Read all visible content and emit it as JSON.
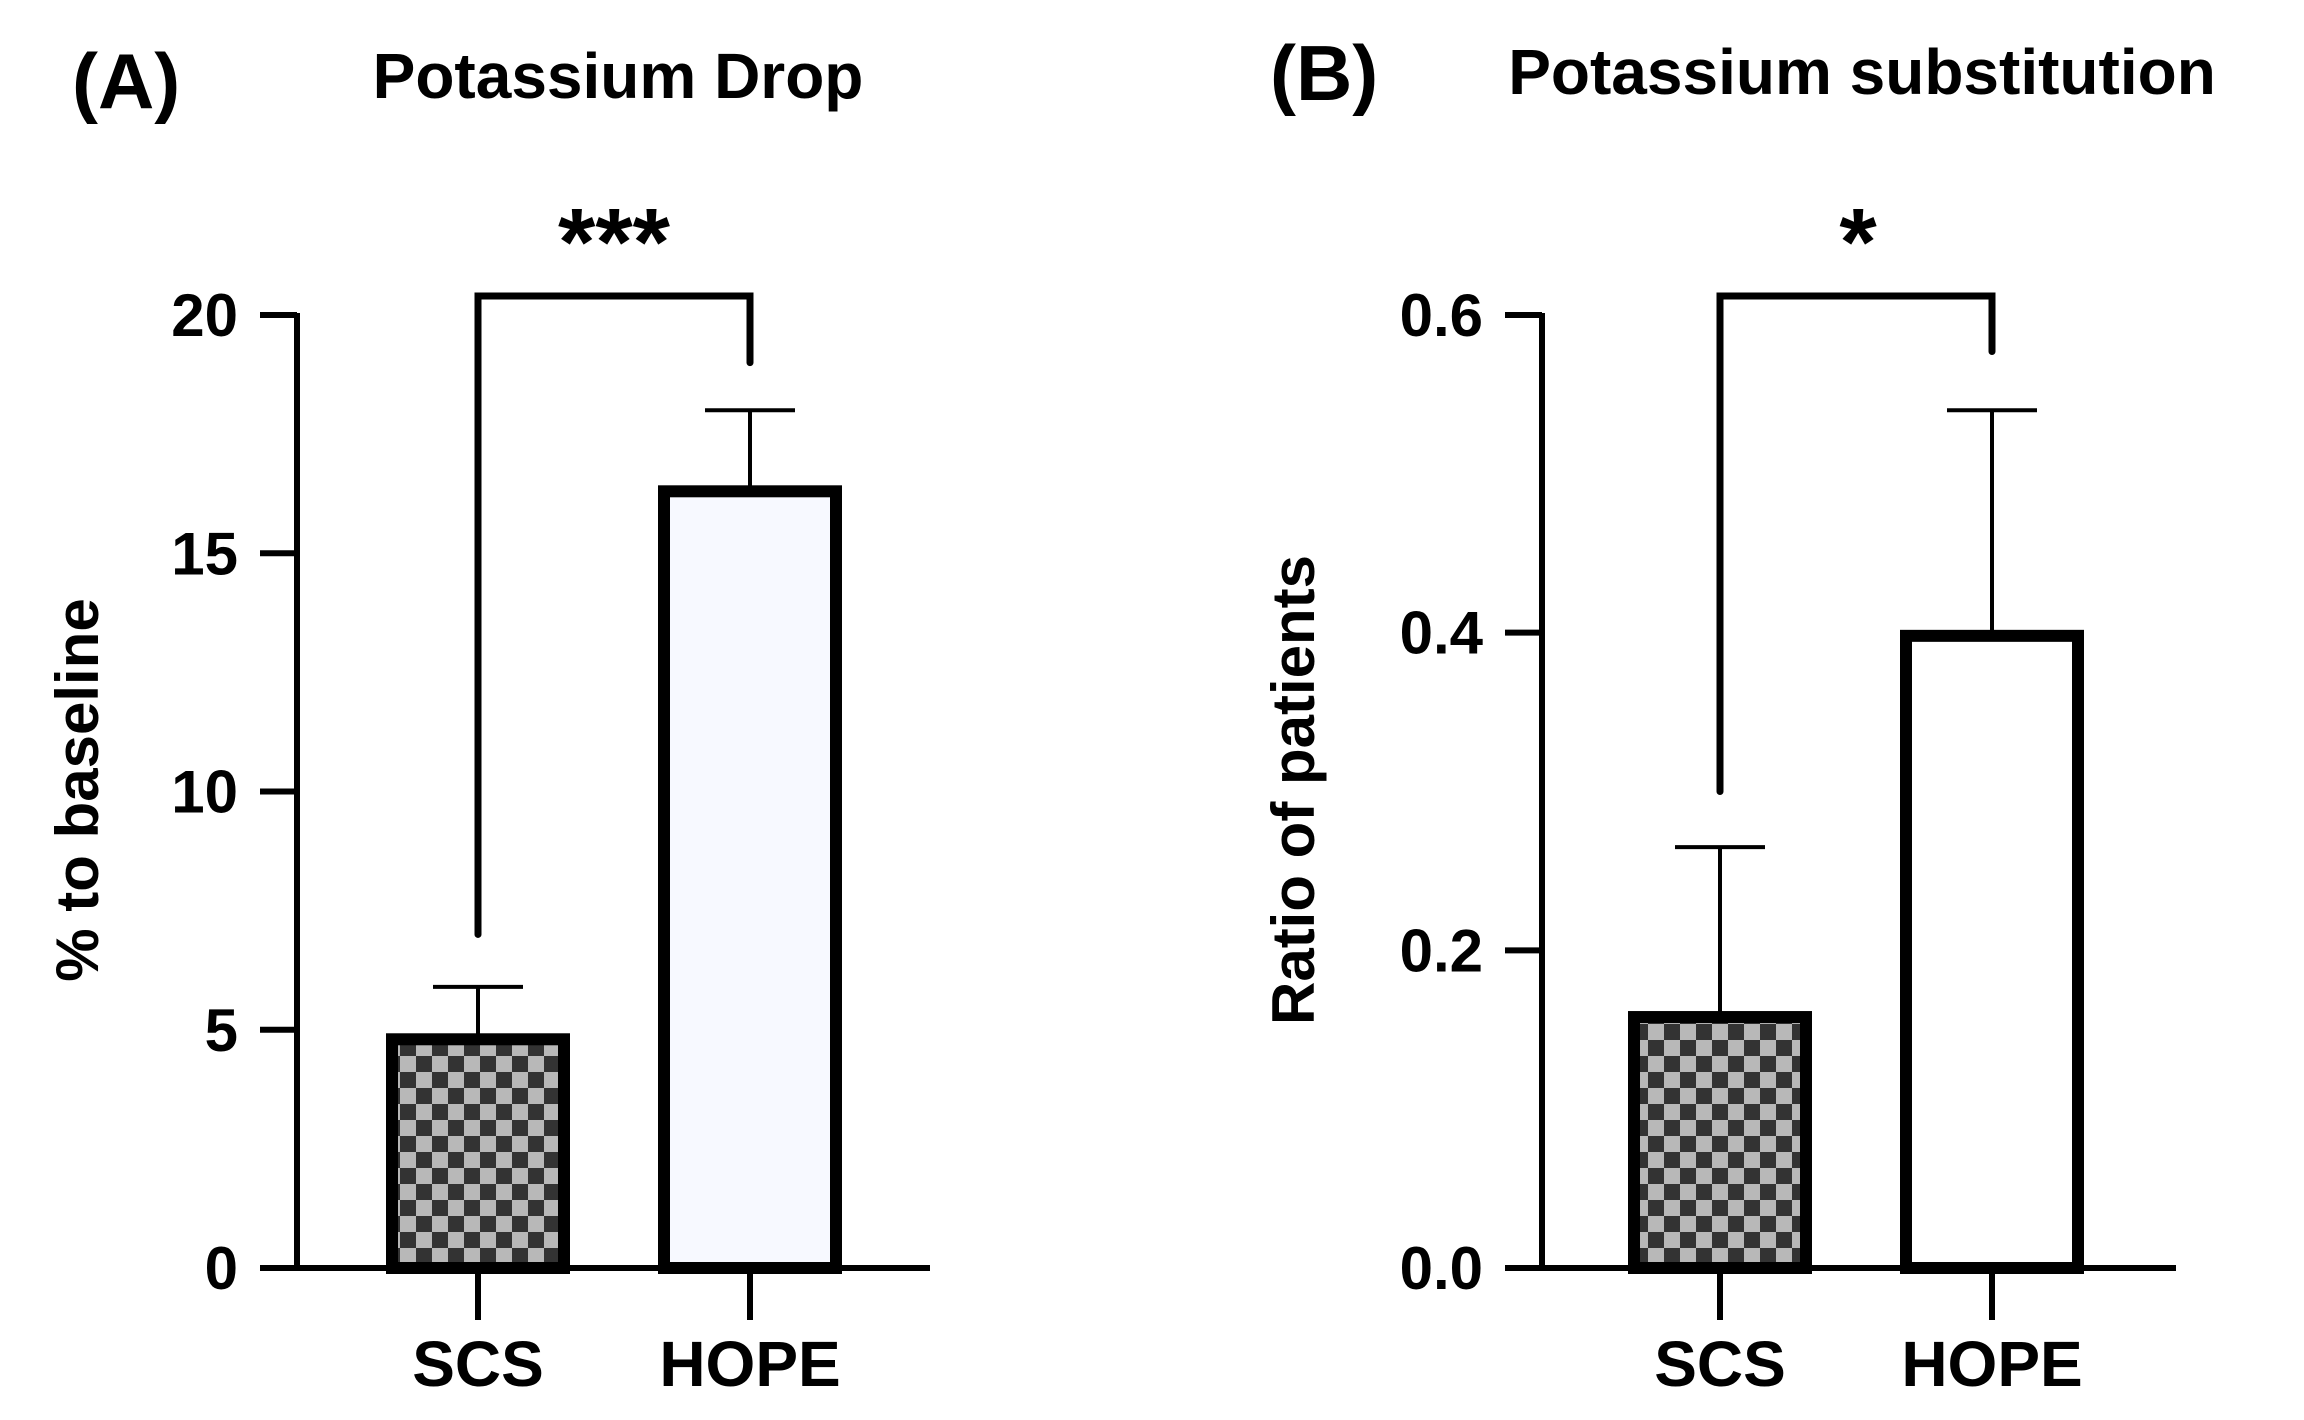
{
  "chart_data": [
    {
      "type": "bar",
      "panel": "(A)",
      "title": "Potassium Drop",
      "xlabel": "",
      "ylabel": "% to baseline",
      "categories": [
        "SCS",
        "HOPE"
      ],
      "values": [
        4.8,
        16.3
      ],
      "error_upper": [
        5.9,
        18.0
      ],
      "patterns": [
        "checker",
        "plain"
      ],
      "ylim": [
        0,
        20
      ],
      "yticks": [
        0,
        5,
        10,
        15,
        20
      ],
      "ytick_labels": [
        "0",
        "5",
        "10",
        "15",
        "20"
      ],
      "significance": {
        "label": "***",
        "between": [
          "SCS",
          "HOPE"
        ],
        "left_start": 7.0,
        "right_start": 19.0,
        "bar_level": 20.4
      },
      "grid": false,
      "legend": "none"
    },
    {
      "type": "bar",
      "panel": "(B)",
      "title": "Potassium substitution",
      "xlabel": "",
      "ylabel": "Ratio of patients",
      "categories": [
        "SCS",
        "HOPE"
      ],
      "values": [
        0.158,
        0.398
      ],
      "error_upper": [
        0.265,
        0.54
      ],
      "patterns": [
        "checker",
        "plain"
      ],
      "ylim": [
        0,
        0.6
      ],
      "yticks": [
        0.0,
        0.2,
        0.4,
        0.6
      ],
      "ytick_labels": [
        "0.0",
        "0.2",
        "0.4",
        "0.6"
      ],
      "significance": {
        "label": "*",
        "between": [
          "SCS",
          "HOPE"
        ],
        "left_start": 0.3,
        "right_start": 0.577,
        "bar_level": 0.612
      },
      "grid": false,
      "legend": "none"
    }
  ],
  "colors": {
    "ink": "#000000",
    "checker_dark": "#333333",
    "checker_light": "#b8b8b8",
    "open_fill_a": "#f7f9ff",
    "open_fill_b": "#ffffff"
  }
}
